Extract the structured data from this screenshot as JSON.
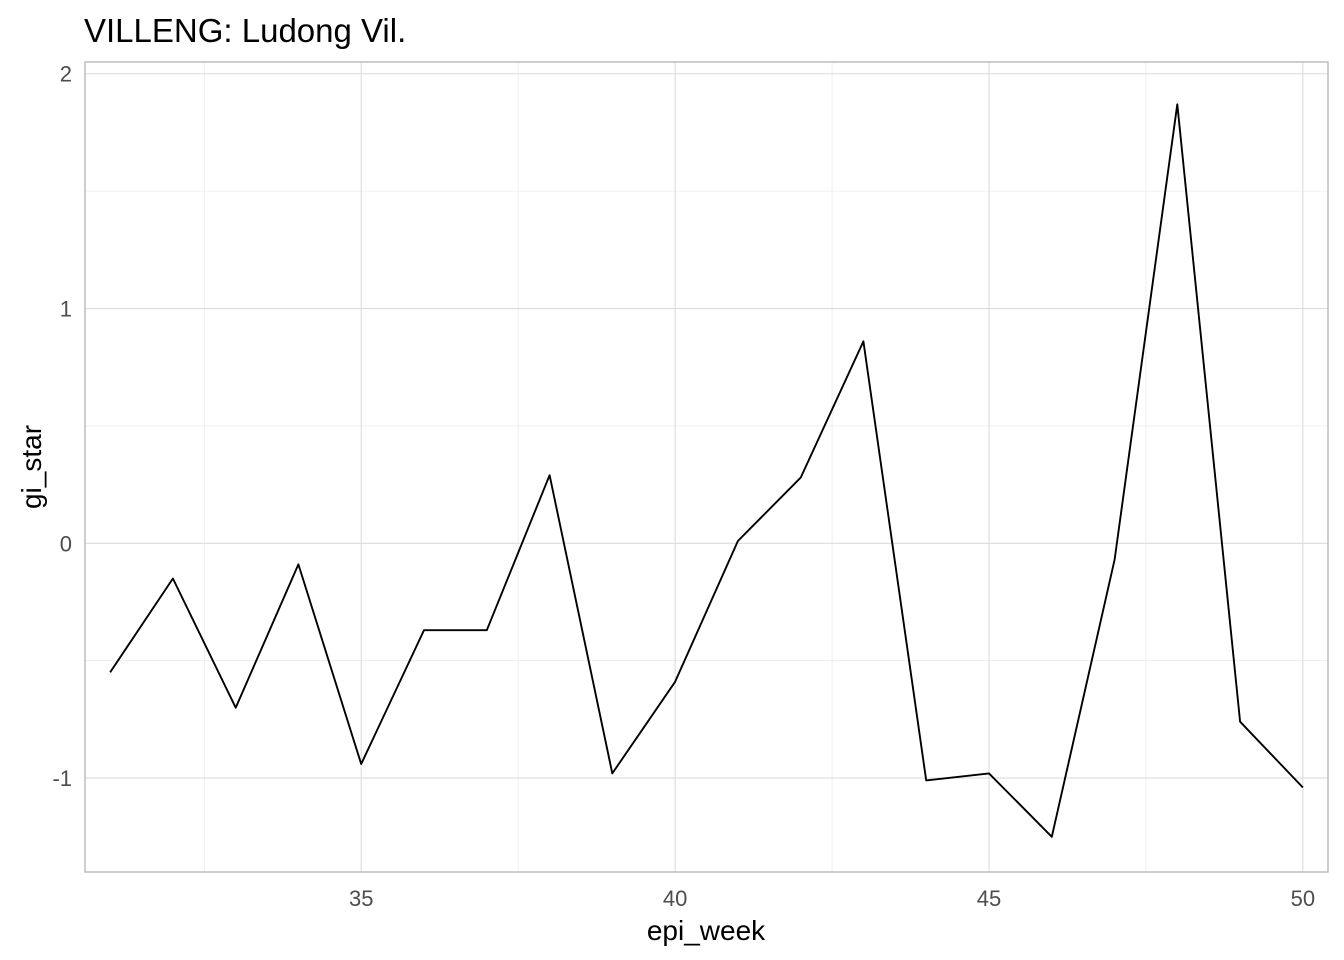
{
  "chart_data": {
    "type": "line",
    "title": "VILLENG: Ludong Vil.",
    "xlabel": "epi_week",
    "ylabel": "gi_star",
    "xlim": [
      30.6,
      50.4
    ],
    "ylim": [
      -1.4,
      2.05
    ],
    "x_ticks": [
      35,
      40,
      45,
      50
    ],
    "y_ticks": [
      -1,
      0,
      1,
      2
    ],
    "x_tick_labels": [
      "35",
      "40",
      "45",
      "50"
    ],
    "y_tick_labels": [
      "-1",
      "0",
      "1",
      "2"
    ],
    "grid": true,
    "line_color": "#000000",
    "x": [
      31,
      32,
      33,
      34,
      35,
      36,
      37,
      38,
      39,
      40,
      41,
      42,
      43,
      44,
      45,
      46,
      47,
      48,
      49,
      50
    ],
    "y": [
      -0.55,
      -0.15,
      -0.7,
      -0.09,
      -0.94,
      -0.37,
      -0.37,
      0.29,
      -0.98,
      -0.59,
      0.01,
      0.28,
      0.86,
      -1.01,
      -0.98,
      -1.25,
      -0.07,
      1.87,
      -0.76,
      -1.04
    ]
  }
}
